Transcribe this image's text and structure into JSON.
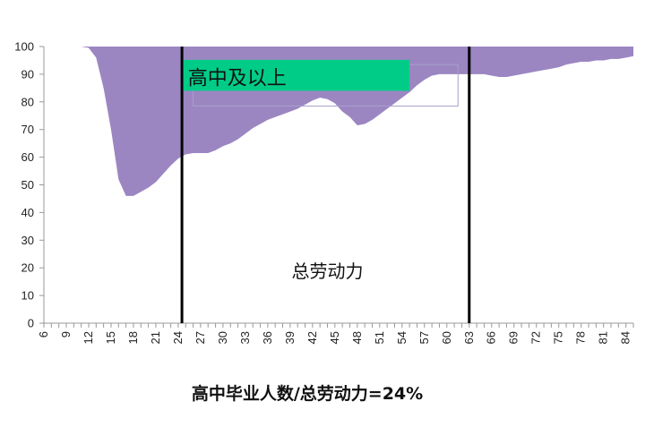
{
  "chart_data": {
    "type": "area",
    "title": "",
    "xlabel": "",
    "ylabel": "",
    "ylim": [
      0,
      100
    ],
    "yticks": [
      0,
      10,
      20,
      30,
      40,
      50,
      60,
      70,
      80,
      90,
      100
    ],
    "xlim": [
      6,
      85
    ],
    "xticks": [
      6,
      9,
      12,
      15,
      18,
      21,
      24,
      27,
      30,
      33,
      36,
      39,
      42,
      45,
      48,
      51,
      54,
      57,
      60,
      63,
      66,
      69,
      72,
      75,
      78,
      81,
      84
    ],
    "grid": false,
    "fill_color": "#9b86c2",
    "series": [
      {
        "x": [
          6,
          7,
          8,
          9,
          10,
          11,
          12,
          13,
          14,
          15,
          16,
          17,
          18,
          19,
          20,
          21,
          22,
          23,
          24,
          25,
          26,
          27,
          28,
          29,
          30,
          31,
          32,
          33,
          34,
          35,
          36,
          37,
          38,
          39,
          40,
          41,
          42,
          43,
          44,
          45,
          46,
          47,
          48,
          49,
          50,
          51,
          52,
          53,
          54,
          55,
          56,
          57,
          58,
          59,
          60,
          61,
          62,
          63,
          64,
          65,
          66,
          67,
          68,
          69,
          70,
          71,
          72,
          73,
          74,
          75,
          76,
          77,
          78,
          79,
          80,
          81,
          82,
          83,
          84,
          85
        ],
        "y": [
          100,
          100,
          100,
          100,
          100,
          100,
          99.5,
          96,
          85,
          70,
          52,
          46,
          46,
          47.5,
          49,
          51,
          54,
          57,
          59.5,
          61,
          61.5,
          61.5,
          61.5,
          62.5,
          64,
          65,
          66.5,
          68.5,
          70.5,
          72,
          73.5,
          74.5,
          75.5,
          76.5,
          77.5,
          79,
          80.5,
          81.5,
          81,
          79.5,
          76.5,
          74.5,
          71.5,
          72,
          73.5,
          75.5,
          77.5,
          79.5,
          81.5,
          83.5,
          86,
          88,
          89.5,
          90,
          90,
          90,
          90,
          90,
          90,
          90,
          89.5,
          89,
          89,
          89.5,
          90,
          90.5,
          91,
          91.5,
          92,
          92.5,
          93.5,
          94,
          94.5,
          94.5,
          95,
          95,
          95.5,
          95.5,
          96,
          96.5
        ]
      }
    ],
    "vertical_lines": [
      24.5,
      63
    ],
    "annotations": {
      "box_label": "高中及以上",
      "box_color": "#00cc88",
      "center_label": "总劳动力",
      "caption": "高中毕业人数/总劳动力=24%"
    }
  }
}
